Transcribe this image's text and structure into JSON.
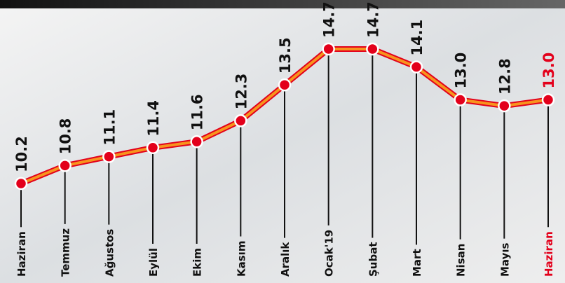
{
  "chart_data": {
    "type": "line",
    "categories": [
      "Haziran",
      "Temmuz",
      "Ağustos",
      "Eylül",
      "Ekim",
      "Kasım",
      "Aralık",
      "Ocak'19",
      "Şubat",
      "Mart",
      "Nisan",
      "Mayıs",
      "Haziran"
    ],
    "values": [
      10.2,
      10.8,
      11.1,
      11.4,
      11.6,
      12.3,
      13.5,
      14.7,
      14.7,
      14.1,
      13.0,
      12.8,
      13.0
    ],
    "value_labels": [
      "10.2",
      "10.8",
      "11.1",
      "11.4",
      "11.6",
      "12.3",
      "13.5",
      "14.7",
      "14.7",
      "14.1",
      "13.0",
      "12.8",
      "13.0"
    ],
    "line_color": "#f7941d",
    "marker_color": "#e3001b",
    "highlight_color": "#e3001b"
  }
}
